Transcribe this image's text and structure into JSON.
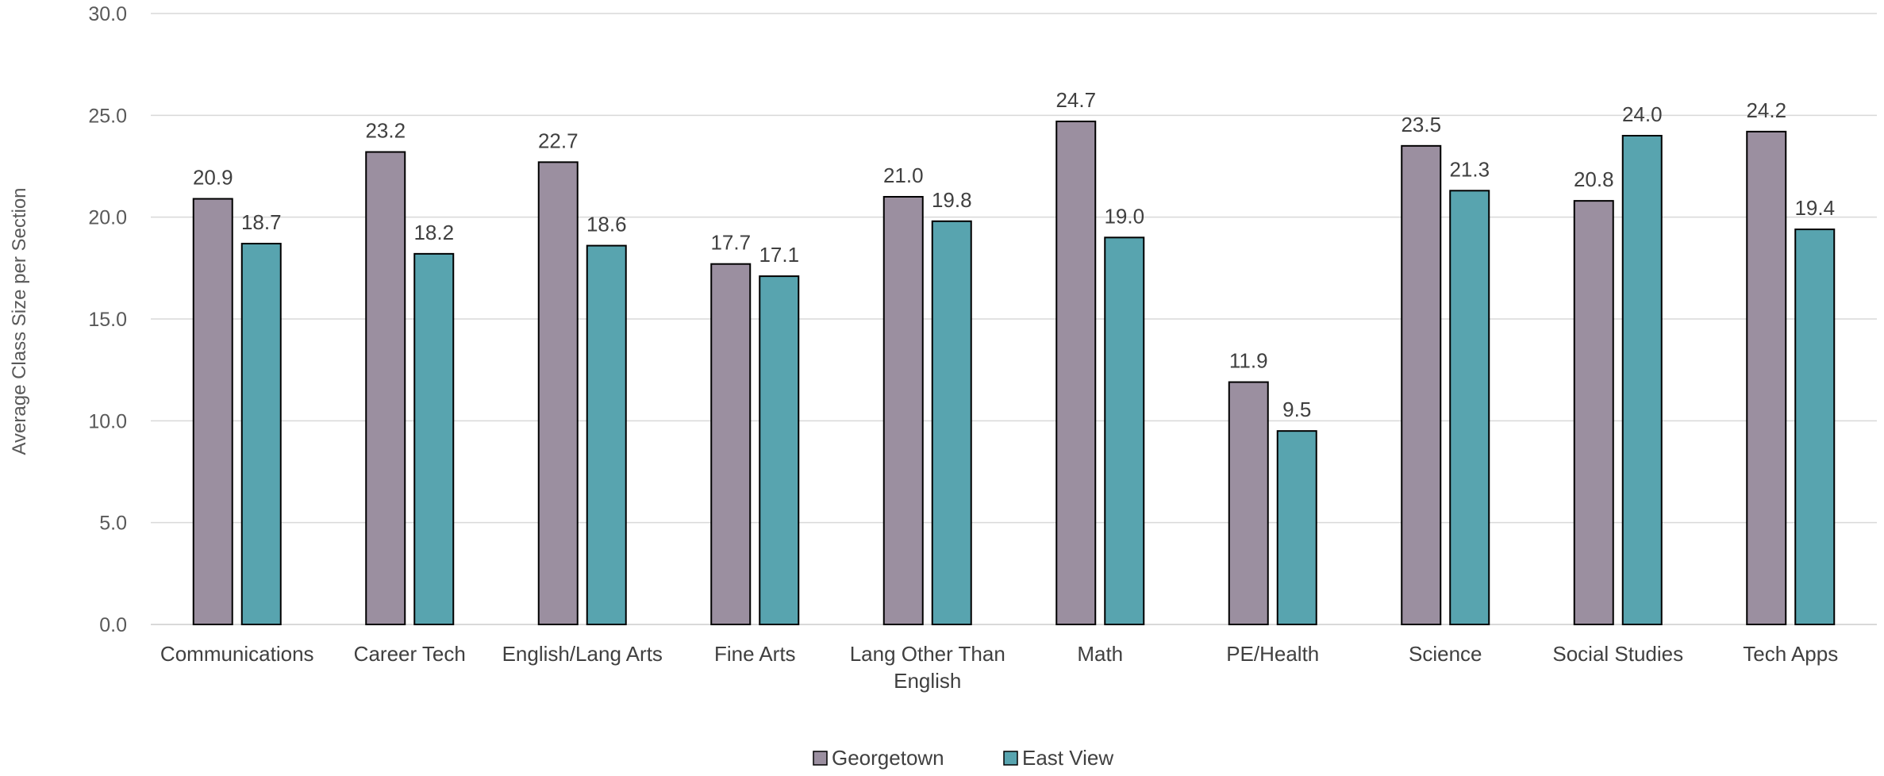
{
  "chart_data": {
    "type": "bar",
    "title": "",
    "xlabel": "",
    "ylabel": "Average Class Size per Section",
    "ylim": [
      0,
      30
    ],
    "yticks": [
      "0.0",
      "5.0",
      "10.0",
      "15.0",
      "20.0",
      "25.0",
      "30.0"
    ],
    "grid": true,
    "legend_position": "bottom",
    "categories": [
      [
        "Communications"
      ],
      [
        "Career Tech"
      ],
      [
        "English/Lang Arts"
      ],
      [
        "Fine Arts"
      ],
      [
        "Lang Other Than",
        "English"
      ],
      [
        "Math"
      ],
      [
        "PE/Health"
      ],
      [
        "Science"
      ],
      [
        "Social Studies"
      ],
      [
        "Tech Apps"
      ]
    ],
    "series": [
      {
        "name": "Georgetown",
        "color": "#9B8FA0",
        "values": [
          20.9,
          23.2,
          22.7,
          17.7,
          21.0,
          24.7,
          11.9,
          23.5,
          20.8,
          24.2
        ],
        "labels": [
          "20.9",
          "23.2",
          "22.7",
          "17.7",
          "21.0",
          "24.7",
          "11.9",
          "23.5",
          "20.8",
          "24.2"
        ]
      },
      {
        "name": "East View",
        "color": "#58A4AF",
        "values": [
          18.7,
          18.2,
          18.6,
          17.1,
          19.8,
          19.0,
          9.5,
          21.3,
          24.0,
          19.4
        ],
        "labels": [
          "18.7",
          "18.2",
          "18.6",
          "17.1",
          "19.8",
          "19.0",
          "9.5",
          "21.3",
          "24.0",
          "19.4"
        ]
      }
    ],
    "colors": {
      "gridline": "#D9D9D9",
      "bar_outline": "#000000"
    }
  }
}
